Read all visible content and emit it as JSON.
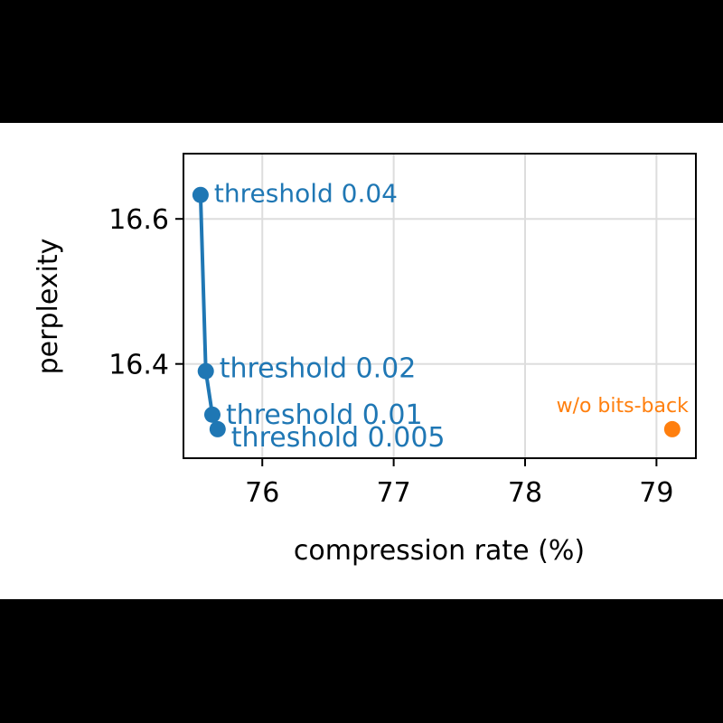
{
  "chart_data": {
    "type": "line",
    "xlabel": "compression rate (%)",
    "ylabel": "perplexity",
    "xlim": [
      75.4,
      79.3
    ],
    "ylim": [
      16.27,
      16.69
    ],
    "xticks": [
      76,
      77,
      78,
      79
    ],
    "yticks": [
      16.4,
      16.6
    ],
    "grid": true,
    "series": [
      {
        "color": "#1f77b4",
        "style": "line-with-markers",
        "points": [
          {
            "x": 75.53,
            "y": 16.633,
            "label": "threshold 0.04"
          },
          {
            "x": 75.57,
            "y": 16.39,
            "label": "threshold 0.02"
          },
          {
            "x": 75.62,
            "y": 16.33,
            "label": "threshold 0.01"
          },
          {
            "x": 75.66,
            "y": 16.31,
            "label": "threshold 0.005"
          }
        ]
      },
      {
        "color": "#ff7f0e",
        "style": "marker",
        "points": [
          {
            "x": 79.12,
            "y": 16.31,
            "label": "w/o bits-back"
          }
        ]
      }
    ]
  }
}
